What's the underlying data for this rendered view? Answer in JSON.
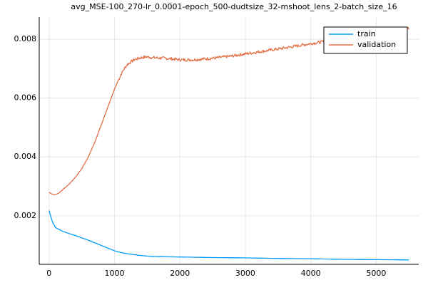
{
  "chart_data": {
    "type": "line",
    "title": "avg_MSE-100_270-lr_0.0001-epoch_500-dudtsize_32-mshoot_lens_2-batch_size_16",
    "xlabel": "",
    "ylabel": "",
    "xlim": [
      -150,
      5650
    ],
    "ylim": [
      0.00035,
      0.00875
    ],
    "xticks": [
      0,
      1000,
      2000,
      3000,
      4000,
      5000
    ],
    "yticks": [
      0.002,
      0.004,
      0.006,
      0.008
    ],
    "xtick_labels": [
      "0",
      "1000",
      "2000",
      "3000",
      "4000",
      "5000"
    ],
    "ytick_labels": [
      "0.002",
      "0.004",
      "0.006",
      "0.008"
    ],
    "grid": true,
    "legend_position": "top-right",
    "series": [
      {
        "name": "train",
        "color": "#009af9",
        "noise": 0,
        "x": [
          0,
          50,
          100,
          200,
          300,
          400,
          500,
          600,
          700,
          800,
          900,
          1000,
          1100,
          1200,
          1300,
          1400,
          1500,
          1700,
          2000,
          2500,
          3000,
          3500,
          4000,
          4500,
          5000,
          5500
        ],
        "y": [
          0.00218,
          0.0018,
          0.0016,
          0.00148,
          0.0014,
          0.00133,
          0.00125,
          0.00117,
          0.00108,
          0.00099,
          0.0009,
          0.00081,
          0.00075,
          0.00071,
          0.00068,
          0.00065,
          0.00063,
          0.00061,
          0.0006,
          0.00058,
          0.00057,
          0.00055,
          0.00054,
          0.00052,
          0.00051,
          0.0005
        ]
      },
      {
        "name": "validation",
        "color": "#e26f46",
        "noise": 5e-05,
        "x": [
          0,
          50,
          100,
          150,
          200,
          300,
          400,
          500,
          600,
          700,
          800,
          900,
          1000,
          1050,
          1100,
          1150,
          1200,
          1300,
          1400,
          1500,
          1600,
          1800,
          2000,
          2200,
          2500,
          2800,
          3000,
          3300,
          3600,
          4000,
          4300,
          4600,
          5000,
          5200,
          5400,
          5500
        ],
        "y": [
          0.0028,
          0.00273,
          0.00272,
          0.00277,
          0.00287,
          0.00306,
          0.0033,
          0.0036,
          0.004,
          0.0045,
          0.0051,
          0.0057,
          0.0063,
          0.00656,
          0.0068,
          0.007,
          0.00715,
          0.0073,
          0.00737,
          0.0074,
          0.00737,
          0.00735,
          0.0073,
          0.0073,
          0.00735,
          0.00743,
          0.0075,
          0.0076,
          0.0077,
          0.00785,
          0.00795,
          0.00805,
          0.00815,
          0.00822,
          0.0083,
          0.00838
        ]
      }
    ]
  }
}
